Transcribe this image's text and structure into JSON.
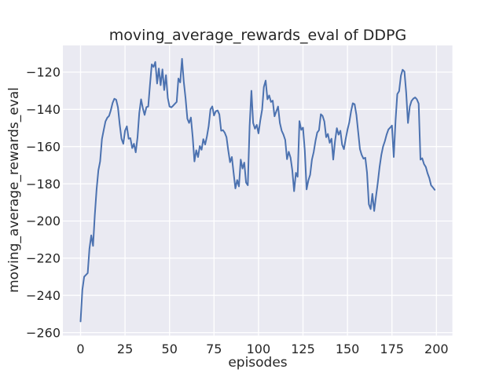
{
  "colors": {
    "figure_bg": "#ffffff",
    "axes_bg": "#eaeaf2",
    "grid": "#ffffff",
    "line": "#4c72b0",
    "text": "#262626"
  },
  "chart_data": {
    "type": "line",
    "title": "moving_average_rewards_eval of DDPG",
    "xlabel": "episodes",
    "ylabel": "moving_average_rewards_eval",
    "legend_position": "none",
    "grid": true,
    "x_tick_labels": [
      "0",
      "25",
      "50",
      "75",
      "100",
      "125",
      "150",
      "175",
      "200"
    ],
    "x_tick_values": [
      0,
      25,
      50,
      75,
      100,
      125,
      150,
      175,
      200
    ],
    "y_tick_labels": [
      "−120",
      "−140",
      "−160",
      "−180",
      "−200",
      "−220",
      "−240",
      "−260"
    ],
    "y_tick_values": [
      -120,
      -140,
      -160,
      -180,
      -200,
      -220,
      -240,
      -260
    ],
    "xlim": [
      -9.95,
      208.95
    ],
    "ylim": [
      -261.6,
      -105.6
    ],
    "series": [
      {
        "name": "moving_average_rewards_eval",
        "x_start": 0,
        "x_step": 1,
        "y": [
          -254.0,
          -237.0,
          -230.0,
          -229.0,
          -228.0,
          -215.0,
          -207.7,
          -213.4,
          -197.0,
          -183.0,
          -172.7,
          -168.0,
          -156.0,
          -151.0,
          -146.5,
          -144.5,
          -143.5,
          -140.5,
          -136.5,
          -134.3,
          -134.8,
          -139.0,
          -148.0,
          -155.8,
          -158.5,
          -151.5,
          -149.1,
          -155.8,
          -155.5,
          -160.8,
          -158.5,
          -163.1,
          -155.0,
          -142.0,
          -134.6,
          -139.5,
          -143.0,
          -138.8,
          -138.5,
          -127.0,
          -115.8,
          -117.2,
          -114.5,
          -126.1,
          -118.0,
          -127.0,
          -118.5,
          -129.6,
          -121.6,
          -133.9,
          -138.5,
          -138.9,
          -138.0,
          -137.0,
          -136.0,
          -123.4,
          -125.5,
          -112.8,
          -125.0,
          -134.0,
          -145.0,
          -147.3,
          -144.4,
          -155.0,
          -168.0,
          -162.0,
          -165.6,
          -159.7,
          -161.7,
          -156.0,
          -158.9,
          -154.5,
          -149.0,
          -140.0,
          -138.4,
          -143.3,
          -141.0,
          -140.6,
          -142.7,
          -151.5,
          -151.2,
          -152.5,
          -155.0,
          -162.0,
          -168.4,
          -165.6,
          -174.0,
          -182.5,
          -178.0,
          -181.4,
          -167.0,
          -171.8,
          -168.6,
          -179.4,
          -180.8,
          -149.0,
          -130.0,
          -147.3,
          -150.4,
          -148.3,
          -152.9,
          -145.9,
          -140.2,
          -128.0,
          -124.5,
          -134.6,
          -132.5,
          -136.0,
          -135.3,
          -143.7,
          -141.0,
          -138.5,
          -147.3,
          -151.5,
          -153.5,
          -156.4,
          -166.8,
          -162.8,
          -166.0,
          -172.7,
          -184.0,
          -174.1,
          -176.2,
          -146.3,
          -151.0,
          -149.8,
          -162.0,
          -183.0,
          -178.3,
          -175.2,
          -167.0,
          -163.0,
          -157.0,
          -152.5,
          -151.2,
          -142.6,
          -143.5,
          -146.5,
          -155.0,
          -153.2,
          -158.0,
          -155.8,
          -167.0,
          -157.0,
          -150.1,
          -153.6,
          -151.5,
          -159.0,
          -161.4,
          -155.8,
          -151.0,
          -147.0,
          -141.0,
          -136.7,
          -137.2,
          -143.0,
          -152.0,
          -161.4,
          -164.5,
          -166.5,
          -166.0,
          -174.0,
          -191.0,
          -193.6,
          -185.4,
          -194.6,
          -186.8,
          -179.7,
          -171.2,
          -164.5,
          -160.0,
          -157.1,
          -153.6,
          -150.8,
          -149.8,
          -148.7,
          -165.6,
          -146.0,
          -131.8,
          -130.2,
          -121.9,
          -118.7,
          -119.7,
          -130.8,
          -147.3,
          -138.5,
          -135.5,
          -134.2,
          -133.6,
          -134.6,
          -136.9,
          -167.0,
          -166.3,
          -169.4,
          -171.0,
          -174.3,
          -177.0,
          -180.8,
          -182.0,
          -183.2
        ]
      }
    ]
  }
}
